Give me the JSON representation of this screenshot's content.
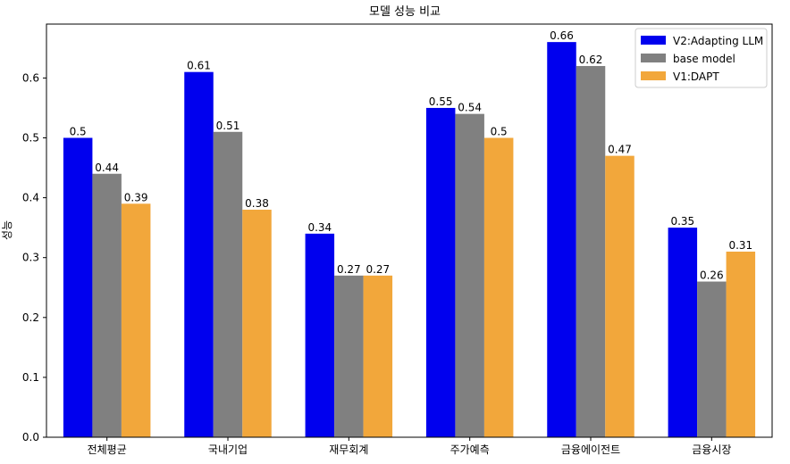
{
  "chart_data": {
    "type": "bar",
    "title": "모델 성능 비교",
    "xlabel": "",
    "ylabel": "성능",
    "ylim": [
      0,
      0.69
    ],
    "yticks": [
      0.0,
      0.1,
      0.2,
      0.3,
      0.4,
      0.5,
      0.6
    ],
    "ytick_labels": [
      "0.0",
      "0.1",
      "0.2",
      "0.3",
      "0.4",
      "0.5",
      "0.6"
    ],
    "categories": [
      "전체평균",
      "국내기업",
      "재무회계",
      "주가예측",
      "금융에이전트",
      "금융시장"
    ],
    "series": [
      {
        "name": "V2:Adapting LLM",
        "color": "#0000ee",
        "values": [
          0.5,
          0.61,
          0.34,
          0.55,
          0.66,
          0.35
        ],
        "labels": [
          "0.5",
          "0.61",
          "0.34",
          "0.55",
          "0.66",
          "0.35"
        ]
      },
      {
        "name": "base model",
        "color": "#808080",
        "values": [
          0.44,
          0.51,
          0.27,
          0.54,
          0.62,
          0.26
        ],
        "labels": [
          "0.44",
          "0.51",
          "0.27",
          "0.54",
          "0.62",
          "0.26"
        ]
      },
      {
        "name": "V1:DAPT",
        "color": "#f2a73b",
        "values": [
          0.39,
          0.38,
          0.27,
          0.5,
          0.47,
          0.31
        ],
        "labels": [
          "0.39",
          "0.38",
          "0.27",
          "0.5",
          "0.47",
          "0.31"
        ]
      }
    ],
    "legend": {
      "placement": "top-right"
    },
    "grid": false
  }
}
